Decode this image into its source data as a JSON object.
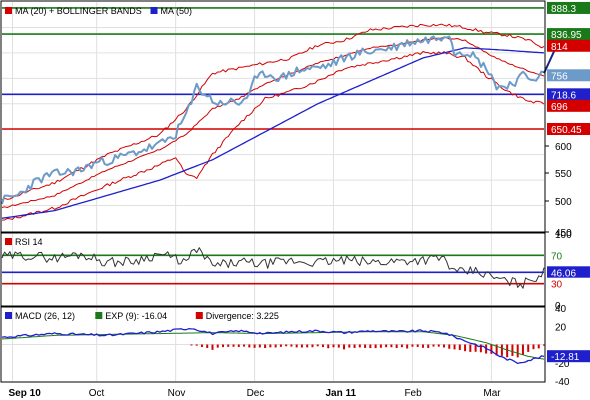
{
  "colors": {
    "ma20": "#d40000",
    "bollinger": "#d40000",
    "ma50": "#1f1fcc",
    "price": "#6c9bc9",
    "green_level": "#1a7a1a",
    "blue_level": "#1f1fcc",
    "red_level": "#d40000",
    "macd": "#1f1fcc",
    "exp": "#1a7a1a",
    "divergence": "#d40000",
    "grid": "#e0e0e0",
    "frame": "#000000",
    "arrow": "#1a237e"
  },
  "chart_data": [
    {
      "type": "line",
      "panel": "price",
      "legend": [
        {
          "name": "MA (20) + BOLLINGER BANDS",
          "color": "ma20"
        },
        {
          "name": "MA (50)",
          "color": "ma50"
        }
      ],
      "ylim": [
        450,
        900
      ],
      "yticks": [
        "450",
        "500",
        "550",
        "600"
      ],
      "level_labels": [
        {
          "value": 888.3,
          "text": "888.3",
          "bg": "#1a7a1a"
        },
        {
          "value": 836.95,
          "text": "836.95",
          "bg": "#1a7a1a"
        },
        {
          "value": 814,
          "text": "814",
          "bg": "#d40000"
        },
        {
          "value": 756,
          "text": "756",
          "bg": "#6c9bc9"
        },
        {
          "value": 718.6,
          "text": "718.6",
          "bg": "#1f1fcc"
        },
        {
          "value": 696,
          "text": "696",
          "bg": "#d40000"
        },
        {
          "value": 650.45,
          "text": "650.45",
          "bg": "#d40000"
        }
      ],
      "horizontal_levels": [
        {
          "value": 888.3,
          "color": "green_level"
        },
        {
          "value": 836.95,
          "color": "green_level"
        },
        {
          "value": 718.6,
          "color": "blue_level"
        },
        {
          "value": 650.45,
          "color": "red_level"
        }
      ],
      "price_anchors": [
        [
          0,
          510
        ],
        [
          6,
          520
        ],
        [
          12,
          545
        ],
        [
          18,
          560
        ],
        [
          24,
          565
        ],
        [
          30,
          570
        ],
        [
          36,
          585
        ],
        [
          42,
          590
        ],
        [
          48,
          600
        ],
        [
          54,
          610
        ],
        [
          60,
          620
        ],
        [
          66,
          640
        ],
        [
          70,
          680
        ],
        [
          72,
          700
        ],
        [
          74,
          735
        ],
        [
          78,
          715
        ],
        [
          82,
          700
        ],
        [
          86,
          705
        ],
        [
          90,
          700
        ],
        [
          94,
          720
        ],
        [
          96,
          745
        ],
        [
          100,
          760
        ],
        [
          106,
          750
        ],
        [
          112,
          765
        ],
        [
          118,
          770
        ],
        [
          124,
          775
        ],
        [
          130,
          790
        ],
        [
          136,
          800
        ],
        [
          142,
          805
        ],
        [
          148,
          810
        ],
        [
          154,
          820
        ],
        [
          160,
          825
        ],
        [
          166,
          830
        ],
        [
          170,
          840
        ],
        [
          172,
          800
        ],
        [
          174,
          805
        ],
        [
          178,
          800
        ],
        [
          182,
          780
        ],
        [
          186,
          760
        ],
        [
          188,
          730
        ],
        [
          190,
          735
        ],
        [
          194,
          740
        ],
        [
          198,
          755
        ],
        [
          202,
          750
        ],
        [
          206,
          760
        ]
      ],
      "ma20_anchors": [
        [
          0,
          495
        ],
        [
          20,
          520
        ],
        [
          40,
          570
        ],
        [
          60,
          610
        ],
        [
          70,
          640
        ],
        [
          80,
          690
        ],
        [
          90,
          710
        ],
        [
          100,
          740
        ],
        [
          110,
          760
        ],
        [
          120,
          780
        ],
        [
          130,
          795
        ],
        [
          140,
          810
        ],
        [
          150,
          815
        ],
        [
          160,
          825
        ],
        [
          168,
          830
        ],
        [
          176,
          825
        ],
        [
          184,
          800
        ],
        [
          192,
          780
        ],
        [
          200,
          765
        ],
        [
          206,
          755
        ]
      ],
      "upper_anchors": [
        [
          0,
          510
        ],
        [
          20,
          545
        ],
        [
          40,
          600
        ],
        [
          60,
          640
        ],
        [
          70,
          690
        ],
        [
          80,
          760
        ],
        [
          90,
          770
        ],
        [
          100,
          780
        ],
        [
          110,
          790
        ],
        [
          120,
          815
        ],
        [
          130,
          825
        ],
        [
          140,
          845
        ],
        [
          150,
          850
        ],
        [
          160,
          855
        ],
        [
          168,
          855
        ],
        [
          176,
          850
        ],
        [
          184,
          840
        ],
        [
          192,
          835
        ],
        [
          200,
          825
        ],
        [
          206,
          810
        ]
      ],
      "lower_anchors": [
        [
          0,
          470
        ],
        [
          20,
          495
        ],
        [
          40,
          540
        ],
        [
          60,
          580
        ],
        [
          66,
          595
        ],
        [
          70,
          560
        ],
        [
          74,
          555
        ],
        [
          80,
          600
        ],
        [
          90,
          660
        ],
        [
          100,
          710
        ],
        [
          110,
          725
        ],
        [
          120,
          745
        ],
        [
          130,
          770
        ],
        [
          140,
          780
        ],
        [
          150,
          790
        ],
        [
          160,
          800
        ],
        [
          168,
          800
        ],
        [
          176,
          790
        ],
        [
          184,
          755
        ],
        [
          192,
          725
        ],
        [
          200,
          705
        ],
        [
          206,
          700
        ]
      ],
      "ma50_anchors": [
        [
          0,
          475
        ],
        [
          20,
          490
        ],
        [
          40,
          520
        ],
        [
          60,
          550
        ],
        [
          80,
          590
        ],
        [
          100,
          645
        ],
        [
          120,
          700
        ],
        [
          140,
          745
        ],
        [
          160,
          790
        ],
        [
          176,
          810
        ],
        [
          192,
          805
        ],
        [
          206,
          800
        ]
      ],
      "arrow": {
        "from": [
          206,
          760
        ],
        "to": [
          216,
          837
        ]
      },
      "n_points": 207
    },
    {
      "type": "line",
      "panel": "rsi",
      "legend": [
        {
          "name": "RSI 14",
          "color": "red_level"
        }
      ],
      "ylim": [
        0,
        100
      ],
      "yticks": [
        "100",
        "50",
        "0"
      ],
      "level_labels": [
        {
          "value": 70,
          "text": "70",
          "bg": "#ffffff",
          "fg": "#1a7a1a"
        },
        {
          "value": 46.06,
          "text": "46.06",
          "bg": "#1f1fcc",
          "fg": "#ffffff"
        },
        {
          "value": 30,
          "text": "30",
          "bg": "#ffffff",
          "fg": "#d40000"
        }
      ],
      "horizontal_levels": [
        {
          "value": 70,
          "color": "green_level"
        },
        {
          "value": 46.06,
          "color": "blue_level"
        },
        {
          "value": 30,
          "color": "red_level"
        }
      ],
      "rsi_anchors": [
        [
          0,
          68
        ],
        [
          10,
          70
        ],
        [
          20,
          66
        ],
        [
          30,
          72
        ],
        [
          40,
          60
        ],
        [
          50,
          62
        ],
        [
          60,
          72
        ],
        [
          66,
          65
        ],
        [
          70,
          60
        ],
        [
          74,
          80
        ],
        [
          80,
          55
        ],
        [
          90,
          60
        ],
        [
          100,
          58
        ],
        [
          110,
          62
        ],
        [
          120,
          60
        ],
        [
          130,
          63
        ],
        [
          140,
          60
        ],
        [
          150,
          62
        ],
        [
          160,
          64
        ],
        [
          168,
          66
        ],
        [
          172,
          45
        ],
        [
          180,
          48
        ],
        [
          186,
          40
        ],
        [
          190,
          35
        ],
        [
          194,
          32
        ],
        [
          198,
          30
        ],
        [
          202,
          38
        ],
        [
          206,
          46
        ]
      ]
    },
    {
      "type": "line",
      "panel": "macd",
      "legend": [
        {
          "name": "MACD (26, 12)",
          "color": "macd"
        },
        {
          "name": "EXP (9): -16.04",
          "color": "exp"
        },
        {
          "name": "Divergence: 3.225",
          "color": "divergence"
        }
      ],
      "ylim": [
        -40,
        40
      ],
      "yticks": [
        "40",
        "20",
        "-20",
        "-40"
      ],
      "level_labels": [
        {
          "value": -12.81,
          "text": "-12.81",
          "bg": "#1f1fcc",
          "fg": "#ffffff"
        }
      ],
      "macd_anchors": [
        [
          0,
          8
        ],
        [
          20,
          12
        ],
        [
          40,
          10
        ],
        [
          60,
          14
        ],
        [
          72,
          18
        ],
        [
          80,
          12
        ],
        [
          90,
          15
        ],
        [
          100,
          12
        ],
        [
          110,
          14
        ],
        [
          120,
          15
        ],
        [
          130,
          13
        ],
        [
          140,
          15
        ],
        [
          150,
          14
        ],
        [
          160,
          15
        ],
        [
          168,
          13
        ],
        [
          176,
          4
        ],
        [
          184,
          -4
        ],
        [
          190,
          -14
        ],
        [
          196,
          -20
        ],
        [
          202,
          -16
        ],
        [
          206,
          -12.81
        ]
      ],
      "signal_anchors": [
        [
          0,
          6
        ],
        [
          20,
          10
        ],
        [
          40,
          11
        ],
        [
          60,
          12
        ],
        [
          80,
          13
        ],
        [
          100,
          12
        ],
        [
          120,
          13
        ],
        [
          140,
          14
        ],
        [
          160,
          14
        ],
        [
          172,
          10
        ],
        [
          184,
          2
        ],
        [
          192,
          -6
        ],
        [
          200,
          -13
        ],
        [
          206,
          -16.04
        ]
      ],
      "divergence_last": 3.225
    }
  ],
  "x_axis": {
    "labels": [
      {
        "text": "Sep 10",
        "bold": true,
        "idx": 4
      },
      {
        "text": "Oct",
        "bold": false,
        "idx": 36
      },
      {
        "text": "Nov",
        "bold": false,
        "idx": 66
      },
      {
        "text": "Dec",
        "bold": false,
        "idx": 96
      },
      {
        "text": "Jan 11",
        "bold": true,
        "idx": 126
      },
      {
        "text": "Feb",
        "bold": false,
        "idx": 156
      },
      {
        "text": "Mar",
        "bold": false,
        "idx": 186
      }
    ],
    "n_points": 207
  }
}
